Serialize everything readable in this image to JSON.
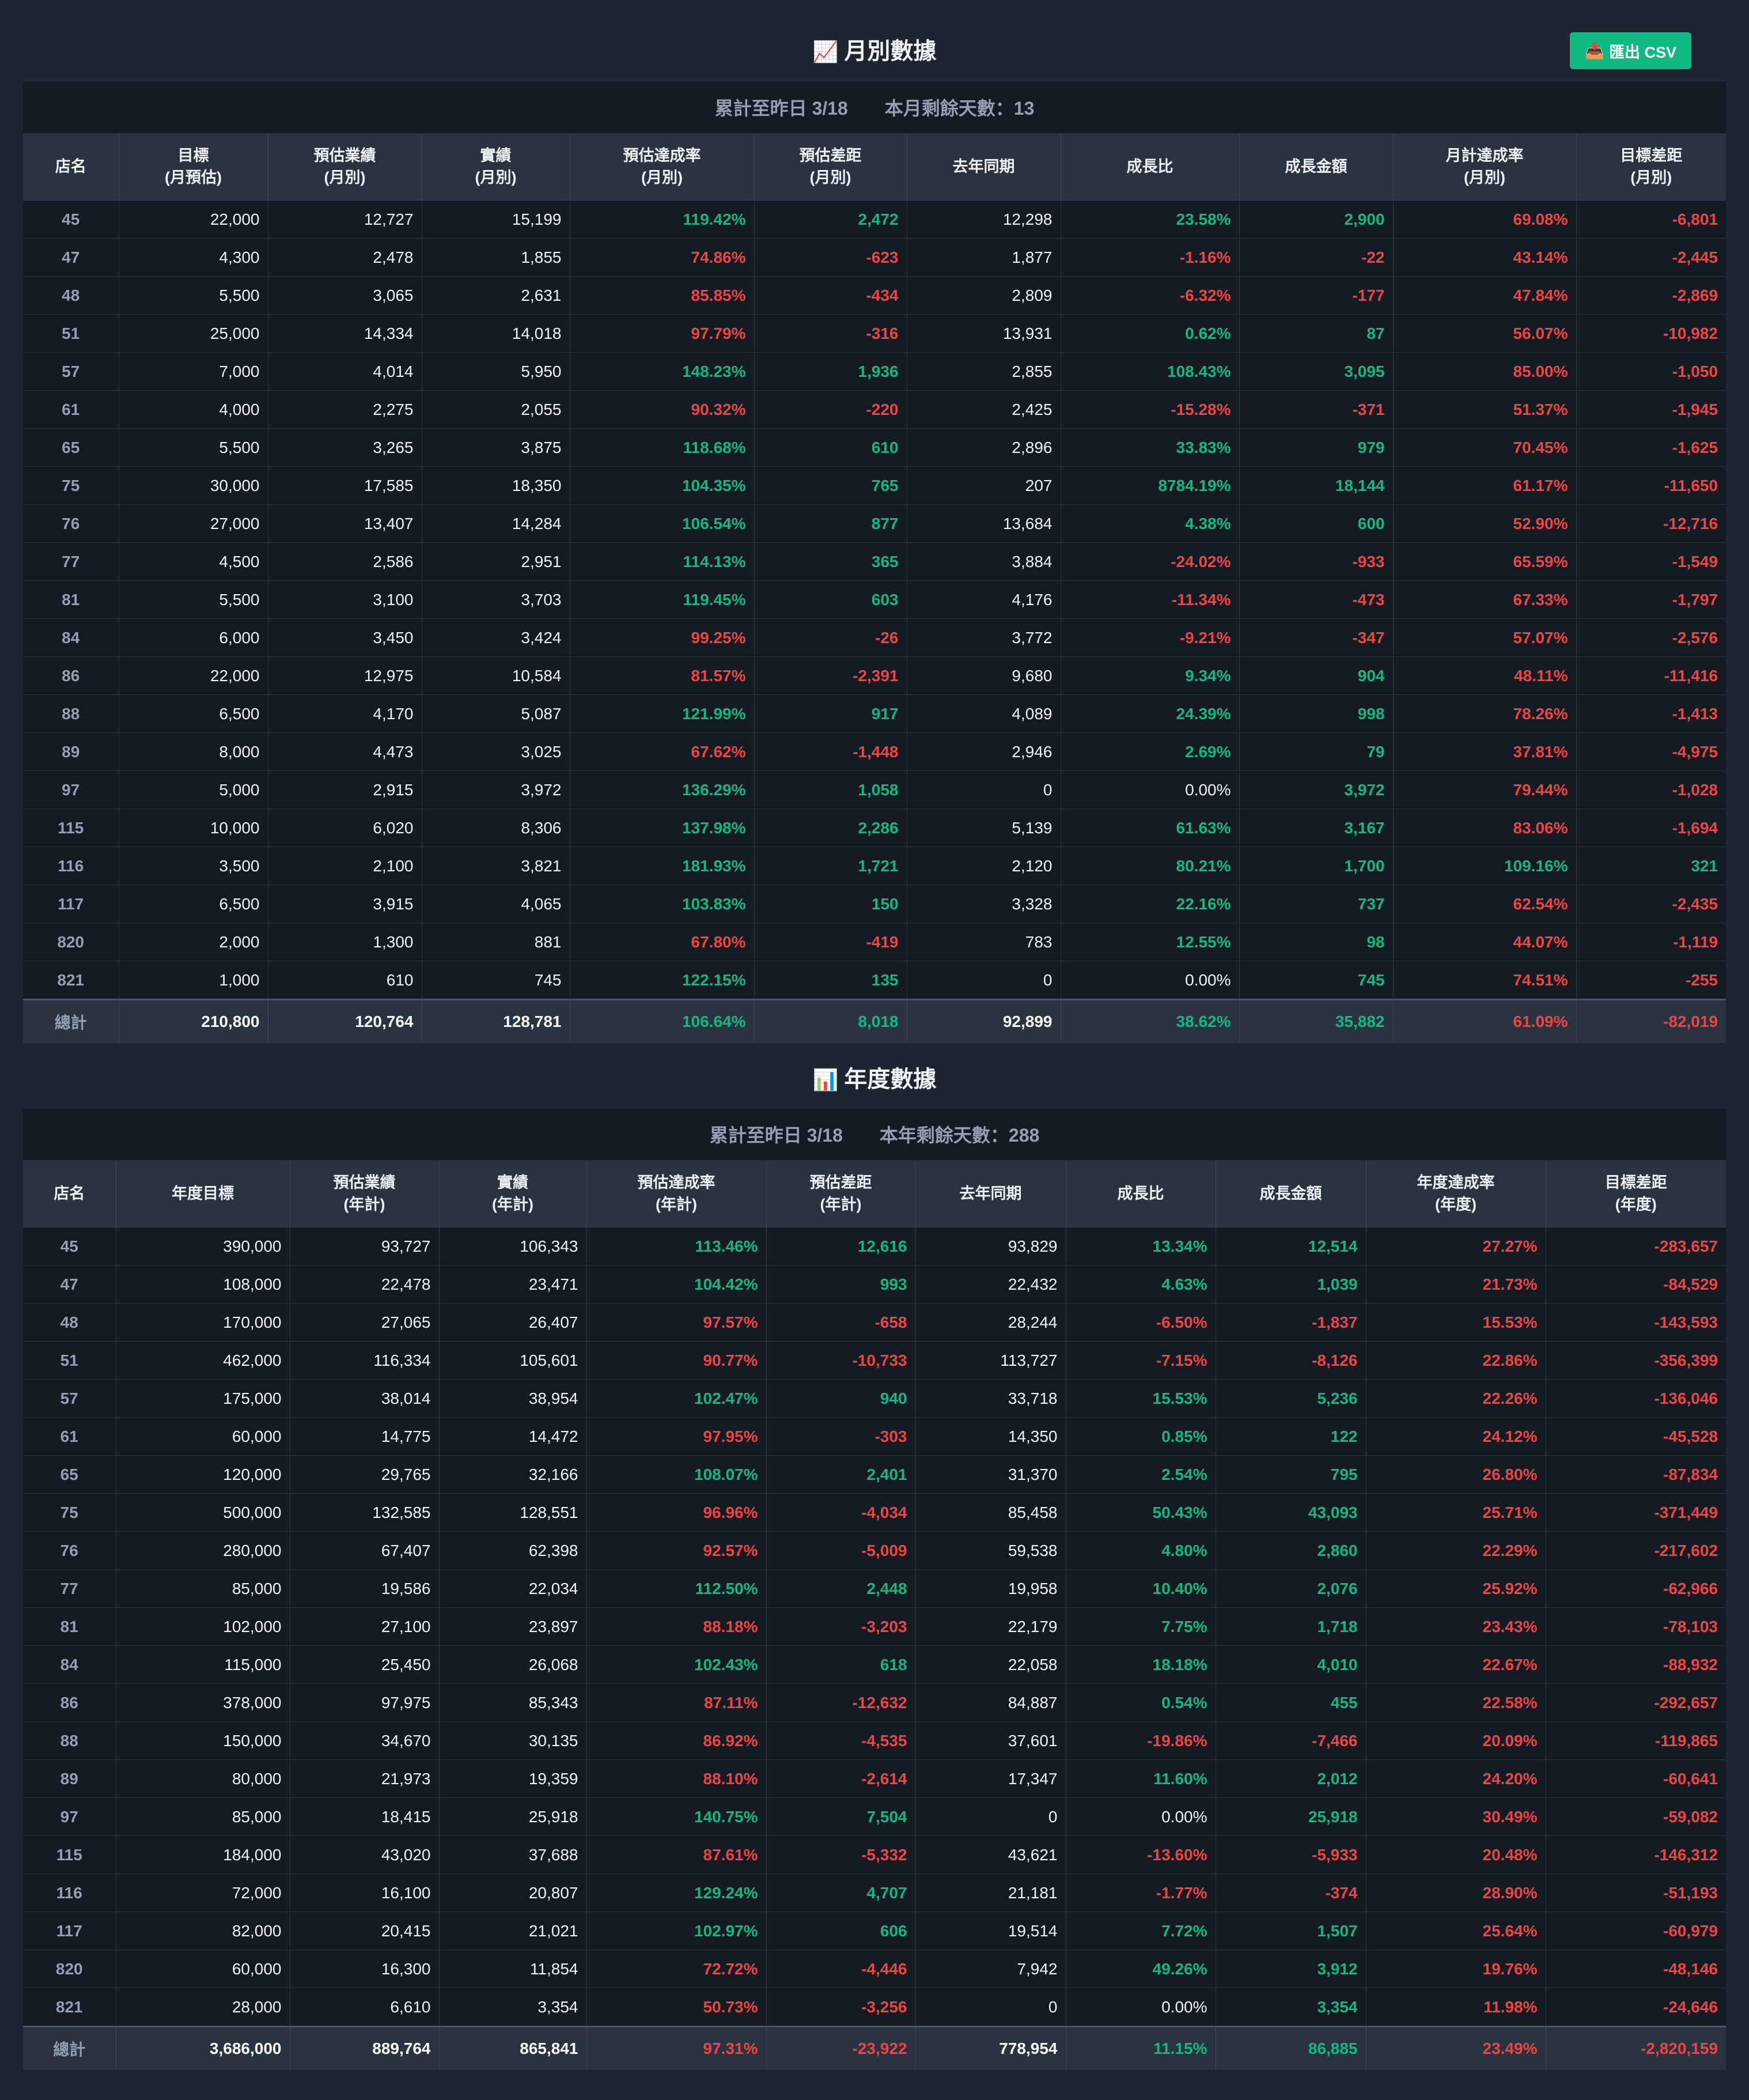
{
  "colors": {
    "positive": "#10b981",
    "negative": "#ef4444",
    "header_bg": "#2a3340",
    "page_bg": "#1e2530"
  },
  "export_button": {
    "icon": "inbox-tray-icon",
    "icon_glyph": "📥",
    "label": "匯出 CSV"
  },
  "monthly": {
    "title_icon": "chart-increasing-icon",
    "title_icon_glyph": "📈",
    "title": "月別數據",
    "info_left": "累計至昨日 3/18",
    "info_right": "本月剩餘天數：13",
    "headers": [
      [
        "店名"
      ],
      [
        "目標",
        "(月預估)"
      ],
      [
        "預估業績",
        "(月別)"
      ],
      [
        "實績",
        "(月別)"
      ],
      [
        "預估達成率",
        "(月別)"
      ],
      [
        "預估差距",
        "(月別)"
      ],
      [
        "去年同期"
      ],
      [
        "成長比"
      ],
      [
        "成長金額"
      ],
      [
        "月計達成率",
        "(月別)"
      ],
      [
        "目標差距",
        "(月別)"
      ]
    ],
    "rows": [
      [
        "45",
        "22,000",
        "12,727",
        "15,199",
        "119.42%",
        "2,472",
        "12,298",
        "23.58%",
        "2,900",
        "69.08%",
        "-6,801"
      ],
      [
        "47",
        "4,300",
        "2,478",
        "1,855",
        "74.86%",
        "-623",
        "1,877",
        "-1.16%",
        "-22",
        "43.14%",
        "-2,445"
      ],
      [
        "48",
        "5,500",
        "3,065",
        "2,631",
        "85.85%",
        "-434",
        "2,809",
        "-6.32%",
        "-177",
        "47.84%",
        "-2,869"
      ],
      [
        "51",
        "25,000",
        "14,334",
        "14,018",
        "97.79%",
        "-316",
        "13,931",
        "0.62%",
        "87",
        "56.07%",
        "-10,982"
      ],
      [
        "57",
        "7,000",
        "4,014",
        "5,950",
        "148.23%",
        "1,936",
        "2,855",
        "108.43%",
        "3,095",
        "85.00%",
        "-1,050"
      ],
      [
        "61",
        "4,000",
        "2,275",
        "2,055",
        "90.32%",
        "-220",
        "2,425",
        "-15.28%",
        "-371",
        "51.37%",
        "-1,945"
      ],
      [
        "65",
        "5,500",
        "3,265",
        "3,875",
        "118.68%",
        "610",
        "2,896",
        "33.83%",
        "979",
        "70.45%",
        "-1,625"
      ],
      [
        "75",
        "30,000",
        "17,585",
        "18,350",
        "104.35%",
        "765",
        "207",
        "8784.19%",
        "18,144",
        "61.17%",
        "-11,650"
      ],
      [
        "76",
        "27,000",
        "13,407",
        "14,284",
        "106.54%",
        "877",
        "13,684",
        "4.38%",
        "600",
        "52.90%",
        "-12,716"
      ],
      [
        "77",
        "4,500",
        "2,586",
        "2,951",
        "114.13%",
        "365",
        "3,884",
        "-24.02%",
        "-933",
        "65.59%",
        "-1,549"
      ],
      [
        "81",
        "5,500",
        "3,100",
        "3,703",
        "119.45%",
        "603",
        "4,176",
        "-11.34%",
        "-473",
        "67.33%",
        "-1,797"
      ],
      [
        "84",
        "6,000",
        "3,450",
        "3,424",
        "99.25%",
        "-26",
        "3,772",
        "-9.21%",
        "-347",
        "57.07%",
        "-2,576"
      ],
      [
        "86",
        "22,000",
        "12,975",
        "10,584",
        "81.57%",
        "-2,391",
        "9,680",
        "9.34%",
        "904",
        "48.11%",
        "-11,416"
      ],
      [
        "88",
        "6,500",
        "4,170",
        "5,087",
        "121.99%",
        "917",
        "4,089",
        "24.39%",
        "998",
        "78.26%",
        "-1,413"
      ],
      [
        "89",
        "8,000",
        "4,473",
        "3,025",
        "67.62%",
        "-1,448",
        "2,946",
        "2.69%",
        "79",
        "37.81%",
        "-4,975"
      ],
      [
        "97",
        "5,000",
        "2,915",
        "3,972",
        "136.29%",
        "1,058",
        "0",
        "0.00%",
        "3,972",
        "79.44%",
        "-1,028"
      ],
      [
        "115",
        "10,000",
        "6,020",
        "8,306",
        "137.98%",
        "2,286",
        "5,139",
        "61.63%",
        "3,167",
        "83.06%",
        "-1,694"
      ],
      [
        "116",
        "3,500",
        "2,100",
        "3,821",
        "181.93%",
        "1,721",
        "2,120",
        "80.21%",
        "1,700",
        "109.16%",
        "321"
      ],
      [
        "117",
        "6,500",
        "3,915",
        "4,065",
        "103.83%",
        "150",
        "3,328",
        "22.16%",
        "737",
        "62.54%",
        "-2,435"
      ],
      [
        "820",
        "2,000",
        "1,300",
        "881",
        "67.80%",
        "-419",
        "783",
        "12.55%",
        "98",
        "44.07%",
        "-1,119"
      ],
      [
        "821",
        "1,000",
        "610",
        "745",
        "122.15%",
        "135",
        "0",
        "0.00%",
        "745",
        "74.51%",
        "-255"
      ]
    ],
    "total": [
      "總計",
      "210,800",
      "120,764",
      "128,781",
      "106.64%",
      "8,018",
      "92,899",
      "38.62%",
      "35,882",
      "61.09%",
      "-82,019"
    ]
  },
  "annual": {
    "title_icon": "bar-chart-icon",
    "title_icon_glyph": "📊",
    "title": "年度數據",
    "info_left": "累計至昨日 3/18",
    "info_right": "本年剩餘天數：288",
    "headers": [
      [
        "店名"
      ],
      [
        "年度目標"
      ],
      [
        "預估業績",
        "(年計)"
      ],
      [
        "實績",
        "(年計)"
      ],
      [
        "預估達成率",
        "(年計)"
      ],
      [
        "預估差距",
        "(年計)"
      ],
      [
        "去年同期"
      ],
      [
        "成長比"
      ],
      [
        "成長金額"
      ],
      [
        "年度達成率",
        "(年度)"
      ],
      [
        "目標差距",
        "(年度)"
      ]
    ],
    "rows": [
      [
        "45",
        "390,000",
        "93,727",
        "106,343",
        "113.46%",
        "12,616",
        "93,829",
        "13.34%",
        "12,514",
        "27.27%",
        "-283,657"
      ],
      [
        "47",
        "108,000",
        "22,478",
        "23,471",
        "104.42%",
        "993",
        "22,432",
        "4.63%",
        "1,039",
        "21.73%",
        "-84,529"
      ],
      [
        "48",
        "170,000",
        "27,065",
        "26,407",
        "97.57%",
        "-658",
        "28,244",
        "-6.50%",
        "-1,837",
        "15.53%",
        "-143,593"
      ],
      [
        "51",
        "462,000",
        "116,334",
        "105,601",
        "90.77%",
        "-10,733",
        "113,727",
        "-7.15%",
        "-8,126",
        "22.86%",
        "-356,399"
      ],
      [
        "57",
        "175,000",
        "38,014",
        "38,954",
        "102.47%",
        "940",
        "33,718",
        "15.53%",
        "5,236",
        "22.26%",
        "-136,046"
      ],
      [
        "61",
        "60,000",
        "14,775",
        "14,472",
        "97.95%",
        "-303",
        "14,350",
        "0.85%",
        "122",
        "24.12%",
        "-45,528"
      ],
      [
        "65",
        "120,000",
        "29,765",
        "32,166",
        "108.07%",
        "2,401",
        "31,370",
        "2.54%",
        "795",
        "26.80%",
        "-87,834"
      ],
      [
        "75",
        "500,000",
        "132,585",
        "128,551",
        "96.96%",
        "-4,034",
        "85,458",
        "50.43%",
        "43,093",
        "25.71%",
        "-371,449"
      ],
      [
        "76",
        "280,000",
        "67,407",
        "62,398",
        "92.57%",
        "-5,009",
        "59,538",
        "4.80%",
        "2,860",
        "22.29%",
        "-217,602"
      ],
      [
        "77",
        "85,000",
        "19,586",
        "22,034",
        "112.50%",
        "2,448",
        "19,958",
        "10.40%",
        "2,076",
        "25.92%",
        "-62,966"
      ],
      [
        "81",
        "102,000",
        "27,100",
        "23,897",
        "88.18%",
        "-3,203",
        "22,179",
        "7.75%",
        "1,718",
        "23.43%",
        "-78,103"
      ],
      [
        "84",
        "115,000",
        "25,450",
        "26,068",
        "102.43%",
        "618",
        "22,058",
        "18.18%",
        "4,010",
        "22.67%",
        "-88,932"
      ],
      [
        "86",
        "378,000",
        "97,975",
        "85,343",
        "87.11%",
        "-12,632",
        "84,887",
        "0.54%",
        "455",
        "22.58%",
        "-292,657"
      ],
      [
        "88",
        "150,000",
        "34,670",
        "30,135",
        "86.92%",
        "-4,535",
        "37,601",
        "-19.86%",
        "-7,466",
        "20.09%",
        "-119,865"
      ],
      [
        "89",
        "80,000",
        "21,973",
        "19,359",
        "88.10%",
        "-2,614",
        "17,347",
        "11.60%",
        "2,012",
        "24.20%",
        "-60,641"
      ],
      [
        "97",
        "85,000",
        "18,415",
        "25,918",
        "140.75%",
        "7,504",
        "0",
        "0.00%",
        "25,918",
        "30.49%",
        "-59,082"
      ],
      [
        "115",
        "184,000",
        "43,020",
        "37,688",
        "87.61%",
        "-5,332",
        "43,621",
        "-13.60%",
        "-5,933",
        "20.48%",
        "-146,312"
      ],
      [
        "116",
        "72,000",
        "16,100",
        "20,807",
        "129.24%",
        "4,707",
        "21,181",
        "-1.77%",
        "-374",
        "28.90%",
        "-51,193"
      ],
      [
        "117",
        "82,000",
        "20,415",
        "21,021",
        "102.97%",
        "606",
        "19,514",
        "7.72%",
        "1,507",
        "25.64%",
        "-60,979"
      ],
      [
        "820",
        "60,000",
        "16,300",
        "11,854",
        "72.72%",
        "-4,446",
        "7,942",
        "49.26%",
        "3,912",
        "19.76%",
        "-48,146"
      ],
      [
        "821",
        "28,000",
        "6,610",
        "3,354",
        "50.73%",
        "-3,256",
        "0",
        "0.00%",
        "3,354",
        "11.98%",
        "-24,646"
      ]
    ],
    "total": [
      "總計",
      "3,686,000",
      "889,764",
      "865,841",
      "97.31%",
      "-23,922",
      "778,954",
      "11.15%",
      "86,885",
      "23.49%",
      "-2,820,159"
    ]
  }
}
